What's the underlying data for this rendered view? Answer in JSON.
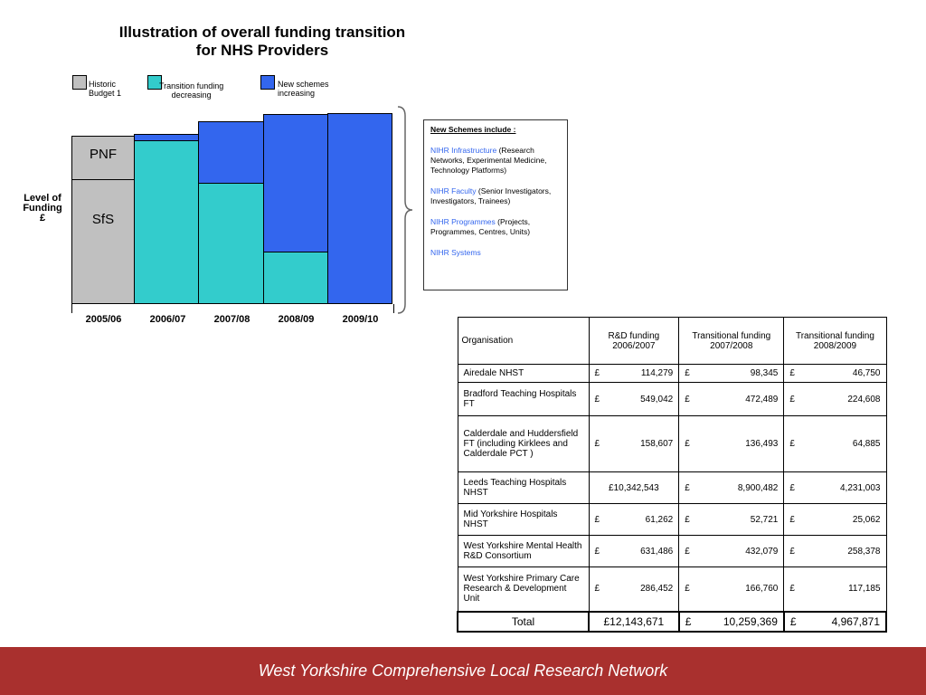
{
  "diagram": {
    "title": [
      "Illustration of overall funding transition",
      "for NHS Providers"
    ],
    "legend": [
      {
        "label": [
          "Historic",
          "Budget 1"
        ]
      },
      {
        "label": [
          "Transition funding",
          "decreasing"
        ]
      },
      {
        "label": [
          "New schemes",
          "increasing"
        ]
      }
    ],
    "y_label": [
      "Level of",
      "Funding",
      "£"
    ],
    "segments": [
      "PNF",
      "SfS"
    ],
    "categories": [
      "2005/06",
      "2006/07",
      "2007/08",
      "2008/09",
      "2009/10"
    ],
    "schemes": {
      "heading": "New Schemes include  :",
      "items": [
        {
          "name": "NIHR Infrastructure",
          "detail": "(Research Networks, Experimental Medicine, Technology Platforms)"
        },
        {
          "name": "NIHR Faculty",
          "detail": "(Senior Investigators, Investigators, Trainees)"
        },
        {
          "name": "NIHR Programmes",
          "detail": "(Projects, Programmes, Centres, Units)"
        },
        {
          "name": "NIHR Systems",
          "detail": ""
        }
      ]
    }
  },
  "table": {
    "header": [
      "Organisation",
      "R&D funding 2006/2007",
      "Transitional funding 2007/2008",
      "Transitional funding 2008/2009"
    ],
    "rows": [
      [
        "Airedale NHST",
        [
          "£",
          "114,279"
        ],
        [
          "£",
          "98,345"
        ],
        [
          "£",
          "46,750"
        ]
      ],
      [
        "Bradford Teaching Hospitals FT",
        [
          "£",
          "549,042"
        ],
        [
          "£",
          "472,489"
        ],
        [
          "£",
          "224,608"
        ]
      ],
      [
        "Calderdale and Huddersfield FT (including Kirklees and Calderdale PCT )",
        [
          "£",
          "158,607"
        ],
        [
          "£",
          "136,493"
        ],
        [
          "£",
          "64,885"
        ]
      ],
      [
        "Leeds Teaching Hospitals NHST",
        [
          "£10,342,543"
        ],
        [
          "£",
          "8,900,482"
        ],
        [
          "£",
          "4,231,003"
        ]
      ],
      [
        "Mid Yorkshire Hospitals NHST",
        [
          "£",
          "61,262"
        ],
        [
          "£",
          "52,721"
        ],
        [
          "£",
          "25,062"
        ]
      ],
      [
        "West Yorkshire Mental Health R&D Consortium",
        [
          "£",
          "631,486"
        ],
        [
          "£",
          "432,079"
        ],
        [
          "£",
          "258,378"
        ]
      ],
      [
        "West Yorkshire Primary Care Research & Development Unit",
        [
          "£",
          "286,452"
        ],
        [
          "£",
          "166,760"
        ],
        [
          "£",
          "117,185"
        ]
      ]
    ],
    "total": [
      "Total",
      [
        "£12,143,671"
      ],
      [
        "£",
        "10,259,369"
      ],
      [
        "£",
        "4,967,871"
      ]
    ]
  },
  "footer": "West Yorkshire Comprehensive Local Research Network"
}
